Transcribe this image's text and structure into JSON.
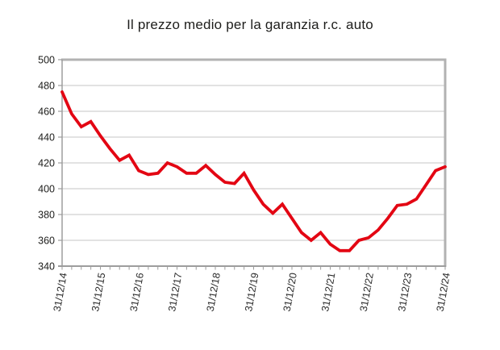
{
  "title": "Il prezzo medio per la garanzia r.c. auto",
  "chart_data": {
    "type": "line",
    "title": "Il prezzo medio per la garanzia r.c. auto",
    "x_tick_labels": [
      "31/12/14",
      "31/12/15",
      "31/12/16",
      "31/12/17",
      "31/12/18",
      "31/12/19",
      "31/12/20",
      "31/12/21",
      "31/12/22",
      "31/12/23",
      "31/12/24"
    ],
    "points_per_year": 4,
    "series": [
      {
        "name": "prezzo-medio-rc-auto",
        "color": "#e30613",
        "values": [
          475,
          458,
          448,
          452,
          441,
          431,
          422,
          426,
          414,
          411,
          412,
          420,
          417,
          412,
          412,
          418,
          411,
          405,
          404,
          412,
          399,
          388,
          381,
          388,
          377,
          366,
          360,
          366,
          357,
          352,
          352,
          360,
          362,
          368,
          377,
          387,
          388,
          392,
          403,
          414,
          417
        ]
      }
    ],
    "ylim": [
      340,
      500
    ],
    "y_ticks": [
      500,
      480,
      460,
      440,
      420,
      400,
      380,
      360,
      340
    ],
    "grid": "horizontal",
    "legend": "none"
  },
  "colors": {
    "line": "#e30613",
    "grid": "#c6c6c6",
    "plot_border": "#b2b2b2",
    "axis": "#9d9d9d",
    "text": "#1d1d1b",
    "background": "#ffffff"
  }
}
